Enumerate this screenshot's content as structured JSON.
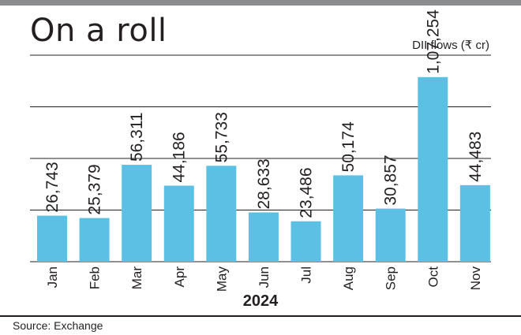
{
  "header": {
    "title": "On a roll",
    "unit_label": "DII flows (₹ cr)"
  },
  "footer": {
    "source": "Source: Exchange"
  },
  "chart_data": {
    "type": "bar",
    "title": "On a roll",
    "ylabel": "DII flows (₹ cr)",
    "xlabel": "2024",
    "categories": [
      "Jan",
      "Feb",
      "Mar",
      "Apr",
      "May",
      "Jun",
      "Jul",
      "Aug",
      "Sep",
      "Oct",
      "Nov"
    ],
    "values": [
      26743,
      25379,
      56311,
      44186,
      55733,
      28633,
      23486,
      50174,
      30857,
      107254,
      44483
    ],
    "value_labels": [
      "26,743",
      "25,379",
      "56,311",
      "44,186",
      "55,733",
      "28,633",
      "23,486",
      "50,174",
      "30,857",
      "1,07,254",
      "44,483"
    ],
    "ylim": [
      0,
      120000
    ],
    "gridlines": [
      0,
      30000,
      60000,
      90000,
      120000
    ],
    "bar_color": "#5bc0e3",
    "legend": "none",
    "grid": true
  }
}
